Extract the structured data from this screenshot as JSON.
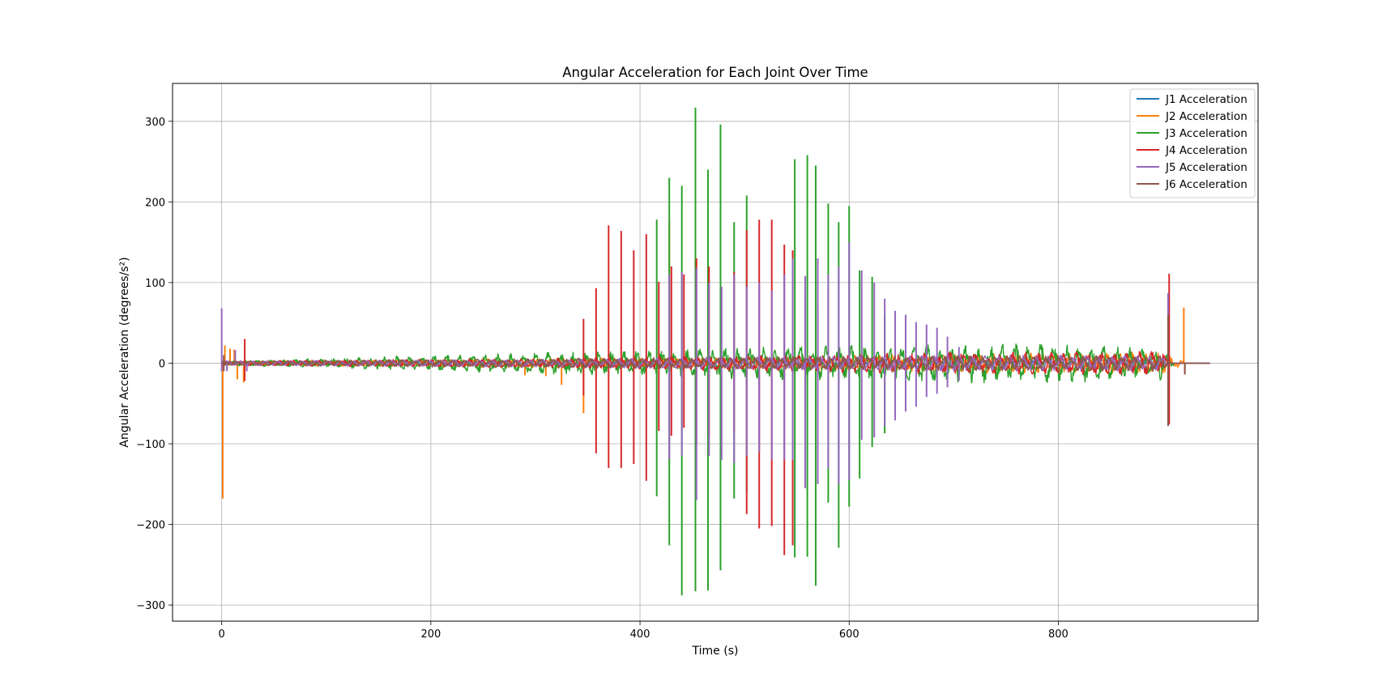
{
  "chart_data": {
    "type": "line",
    "title": "Angular Acceleration for Each Joint Over Time",
    "xlabel": "Time (s)",
    "ylabel": "Angular Acceleration (degrees/s²)",
    "xlim": [
      -47,
      991
    ],
    "ylim": [
      -320,
      347
    ],
    "xticks": [
      0,
      200,
      400,
      600,
      800
    ],
    "yticks": [
      -300,
      -200,
      -100,
      0,
      100,
      200,
      300
    ],
    "xtick_labels": [
      "0",
      "200",
      "400",
      "600",
      "800"
    ],
    "ytick_labels": [
      "−300",
      "−200",
      "−100",
      "0",
      "100",
      "200",
      "300"
    ],
    "grid": true,
    "legend_position": "top-right",
    "series": [
      {
        "name": "J1 Acceleration",
        "color": "#1f77b4",
        "baseline_amplitude": [
          [
            0,
            2
          ],
          [
            900,
            4
          ]
        ],
        "spikes": []
      },
      {
        "name": "J2 Acceleration",
        "color": "#ff7f0e",
        "baseline_amplitude": [
          [
            0,
            3
          ],
          [
            300,
            6
          ],
          [
            500,
            8
          ],
          [
            700,
            12
          ],
          [
            900,
            14
          ],
          [
            920,
            3
          ]
        ],
        "spikes": [
          [
            1,
            -168
          ],
          [
            3,
            22
          ],
          [
            8,
            18
          ],
          [
            12,
            17
          ],
          [
            15,
            -20
          ],
          [
            21,
            -24
          ],
          [
            290,
            -15
          ],
          [
            310,
            -16
          ],
          [
            325,
            -27
          ],
          [
            346,
            -62
          ],
          [
            428,
            176
          ],
          [
            920,
            69
          ],
          [
            921,
            -14
          ]
        ]
      },
      {
        "name": "J3 Acceleration",
        "color": "#2ca02c",
        "baseline_amplitude": [
          [
            0,
            3
          ],
          [
            100,
            6
          ],
          [
            200,
            10
          ],
          [
            300,
            14
          ],
          [
            400,
            16
          ],
          [
            500,
            20
          ],
          [
            600,
            22
          ],
          [
            700,
            25
          ],
          [
            800,
            25
          ],
          [
            900,
            22
          ],
          [
            910,
            3
          ]
        ],
        "spikes": [
          [
            416,
            178
          ],
          [
            416,
            -165
          ],
          [
            428,
            230
          ],
          [
            428,
            -226
          ],
          [
            440,
            220
          ],
          [
            440,
            -288
          ],
          [
            453,
            317
          ],
          [
            453,
            -283
          ],
          [
            465,
            240
          ],
          [
            465,
            -282
          ],
          [
            477,
            296
          ],
          [
            477,
            -257
          ],
          [
            490,
            175
          ],
          [
            490,
            -168
          ],
          [
            502,
            208
          ],
          [
            502,
            -160
          ],
          [
            548,
            253
          ],
          [
            548,
            -241
          ],
          [
            560,
            258
          ],
          [
            560,
            -240
          ],
          [
            568,
            245
          ],
          [
            568,
            -276
          ],
          [
            580,
            198
          ],
          [
            580,
            -173
          ],
          [
            590,
            175
          ],
          [
            590,
            -229
          ],
          [
            600,
            195
          ],
          [
            600,
            -178
          ],
          [
            610,
            115
          ],
          [
            610,
            -143
          ],
          [
            622,
            107
          ],
          [
            622,
            -104
          ],
          [
            634,
            60
          ],
          [
            634,
            -87
          ]
        ]
      },
      {
        "name": "J4 Acceleration",
        "color": "#d62728",
        "baseline_amplitude": [
          [
            0,
            3
          ],
          [
            300,
            6
          ],
          [
            500,
            10
          ],
          [
            700,
            14
          ],
          [
            900,
            15
          ],
          [
            905,
            3
          ]
        ],
        "spikes": [
          [
            22,
            30
          ],
          [
            22,
            -22
          ],
          [
            346,
            55
          ],
          [
            346,
            -40
          ],
          [
            358,
            93
          ],
          [
            358,
            -112
          ],
          [
            370,
            171
          ],
          [
            370,
            -130
          ],
          [
            382,
            164
          ],
          [
            382,
            -130
          ],
          [
            394,
            140
          ],
          [
            394,
            -125
          ],
          [
            406,
            160
          ],
          [
            406,
            -146
          ],
          [
            418,
            101
          ],
          [
            418,
            -84
          ],
          [
            430,
            120
          ],
          [
            430,
            -90
          ],
          [
            442,
            110
          ],
          [
            442,
            -80
          ],
          [
            454,
            130
          ],
          [
            454,
            -100
          ],
          [
            466,
            120
          ],
          [
            466,
            -90
          ],
          [
            490,
            113
          ],
          [
            490,
            -84
          ],
          [
            502,
            165
          ],
          [
            502,
            -187
          ],
          [
            514,
            178
          ],
          [
            514,
            -205
          ],
          [
            526,
            178
          ],
          [
            526,
            -202
          ],
          [
            538,
            147
          ],
          [
            538,
            -238
          ],
          [
            546,
            140
          ],
          [
            546,
            -226
          ],
          [
            558,
            80
          ],
          [
            558,
            -60
          ],
          [
            570,
            70
          ],
          [
            570,
            -50
          ],
          [
            906,
            111
          ],
          [
            906,
            -76
          ]
        ]
      },
      {
        "name": "J5 Acceleration",
        "color": "#9467bd",
        "baseline_amplitude": [
          [
            0,
            3
          ],
          [
            300,
            5
          ],
          [
            500,
            8
          ],
          [
            700,
            10
          ],
          [
            900,
            10
          ],
          [
            905,
            2
          ]
        ],
        "spikes": [
          [
            0,
            68
          ],
          [
            0,
            -10
          ],
          [
            5,
            -10
          ],
          [
            13,
            16
          ],
          [
            24,
            -10
          ],
          [
            428,
            110
          ],
          [
            428,
            -119
          ],
          [
            440,
            113
          ],
          [
            440,
            -115
          ],
          [
            454,
            118
          ],
          [
            454,
            -170
          ],
          [
            466,
            100
          ],
          [
            466,
            -115
          ],
          [
            478,
            95
          ],
          [
            478,
            -120
          ],
          [
            490,
            110
          ],
          [
            490,
            -124
          ],
          [
            502,
            95
          ],
          [
            502,
            -115
          ],
          [
            514,
            100
          ],
          [
            514,
            -110
          ],
          [
            526,
            90
          ],
          [
            526,
            -120
          ],
          [
            538,
            110
          ],
          [
            538,
            -120
          ],
          [
            546,
            130
          ],
          [
            546,
            -120
          ],
          [
            558,
            108
          ],
          [
            558,
            -155
          ],
          [
            570,
            130
          ],
          [
            570,
            -150
          ],
          [
            580,
            110
          ],
          [
            580,
            -130
          ],
          [
            590,
            120
          ],
          [
            590,
            -150
          ],
          [
            600,
            150
          ],
          [
            600,
            -145
          ],
          [
            612,
            115
          ],
          [
            612,
            -95
          ],
          [
            624,
            100
          ],
          [
            624,
            -92
          ],
          [
            634,
            80
          ],
          [
            634,
            -78
          ],
          [
            644,
            65
          ],
          [
            644,
            -71
          ],
          [
            654,
            60
          ],
          [
            654,
            -60
          ],
          [
            664,
            51
          ],
          [
            664,
            -54
          ],
          [
            674,
            48
          ],
          [
            674,
            -42
          ],
          [
            684,
            44
          ],
          [
            684,
            -38
          ],
          [
            694,
            33
          ],
          [
            694,
            -30
          ],
          [
            705,
            20
          ],
          [
            705,
            -22
          ],
          [
            905,
            87
          ],
          [
            905,
            -74
          ]
        ]
      },
      {
        "name": "J6 Acceleration",
        "color": "#8c564b",
        "baseline_amplitude": [
          [
            0,
            3
          ],
          [
            300,
            6
          ],
          [
            500,
            8
          ],
          [
            700,
            10
          ],
          [
            900,
            10
          ],
          [
            905,
            2
          ]
        ],
        "spikes": [
          [
            2,
            10
          ],
          [
            2,
            -10
          ],
          [
            905,
            60
          ],
          [
            905,
            -78
          ],
          [
            921,
            -14
          ]
        ]
      }
    ]
  }
}
